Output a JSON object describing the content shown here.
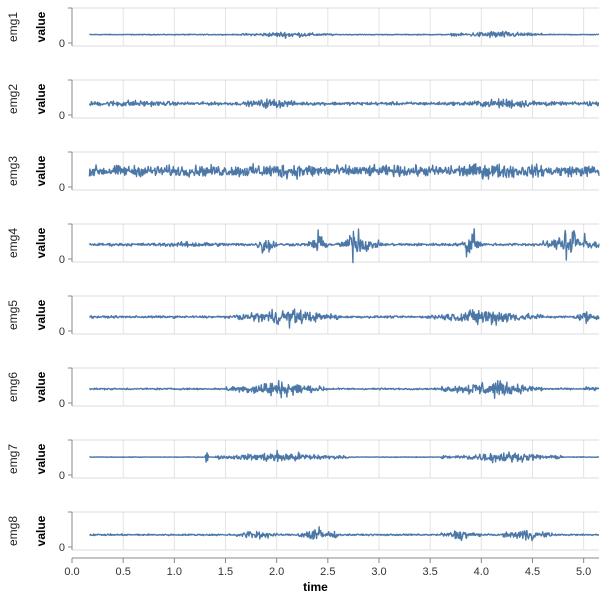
{
  "chart_data": {
    "type": "line",
    "title": "",
    "xlabel": "time",
    "ylabel": "value",
    "xlim": [
      0.0,
      5.15
    ],
    "x_ticks": [
      "0.0",
      "0.5",
      "1.0",
      "1.5",
      "2.0",
      "2.5",
      "3.0",
      "3.5",
      "4.0",
      "4.5",
      "5.0"
    ],
    "y_tick": "0",
    "grid": true,
    "color": "#4c78a8",
    "series": [
      {
        "name": "emg1",
        "baseline": 0.3,
        "noise": 0.015,
        "bursts": [
          [
            1.65,
            2.55,
            0.1
          ],
          [
            3.7,
            4.6,
            0.13
          ]
        ]
      },
      {
        "name": "emg2",
        "baseline": 0.38,
        "noise": 0.06,
        "bursts": [
          [
            0.1,
            1.0,
            0.07
          ],
          [
            1.7,
            2.2,
            0.14
          ],
          [
            3.8,
            4.7,
            0.13
          ],
          [
            5.0,
            5.15,
            0.06
          ]
        ]
      },
      {
        "name": "emg3",
        "baseline": 0.5,
        "noise": 0.2,
        "bursts": [
          [
            1.6,
            2.6,
            0.08
          ],
          [
            3.6,
            4.6,
            0.08
          ]
        ]
      },
      {
        "name": "emg4",
        "baseline": 0.46,
        "noise": 0.05,
        "bursts": [
          [
            0.8,
            1.5,
            0.06
          ],
          [
            1.8,
            2.0,
            0.35
          ],
          [
            2.3,
            2.5,
            0.3
          ],
          [
            2.6,
            3.0,
            0.33
          ],
          [
            3.8,
            4.0,
            0.36
          ],
          [
            4.6,
            5.15,
            0.3
          ]
        ]
      },
      {
        "name": "emg5",
        "baseline": 0.45,
        "noise": 0.04,
        "bursts": [
          [
            1.6,
            2.6,
            0.3
          ],
          [
            3.5,
            4.6,
            0.3
          ],
          [
            4.9,
            5.15,
            0.22
          ]
        ]
      },
      {
        "name": "emg6",
        "baseline": 0.45,
        "noise": 0.03,
        "bursts": [
          [
            1.5,
            2.5,
            0.3
          ],
          [
            3.6,
            4.6,
            0.3
          ],
          [
            5.0,
            5.15,
            0.1
          ]
        ]
      },
      {
        "name": "emg7",
        "baseline": 0.55,
        "noise": 0.012,
        "bursts": [
          [
            1.3,
            1.33,
            0.35
          ],
          [
            1.4,
            2.7,
            0.2
          ],
          [
            3.6,
            4.8,
            0.2
          ]
        ]
      },
      {
        "name": "emg8",
        "baseline": 0.4,
        "noise": 0.03,
        "bursts": [
          [
            1.6,
            2.0,
            0.18
          ],
          [
            2.2,
            2.6,
            0.28
          ],
          [
            3.6,
            4.0,
            0.18
          ],
          [
            4.2,
            4.7,
            0.2
          ]
        ]
      }
    ]
  }
}
